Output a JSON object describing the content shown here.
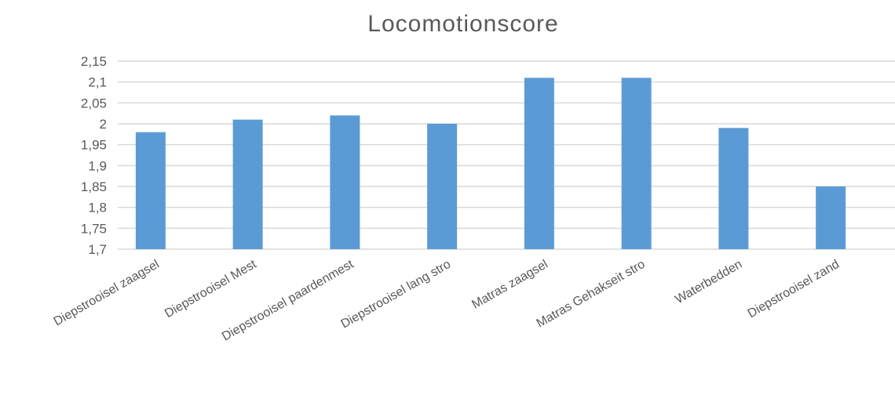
{
  "chart_data": {
    "type": "bar",
    "title": "Locomotionscore",
    "categories": [
      "Diepstrooisel zaagsel",
      "Diepstrooisel Mest",
      "Diepstrooisel paardenmest",
      "Diepstrooisel lang stro",
      "Matras zaagsel",
      "Matras Gehakseit stro",
      "Waterbedden",
      "Diepstrooisel zand"
    ],
    "values": [
      1.98,
      2.01,
      2.02,
      2.0,
      2.11,
      2.11,
      1.99,
      1.85
    ],
    "ylim": [
      1.7,
      2.15
    ],
    "yticks": [
      "2,15",
      "2,1",
      "2,05",
      "2",
      "1,95",
      "1,9",
      "1,85",
      "1,8",
      "1,75",
      "1,7"
    ],
    "grid": true,
    "bar_color": "#5b9bd5",
    "grid_color": "#d9d9d9",
    "text_color": "#595959"
  }
}
